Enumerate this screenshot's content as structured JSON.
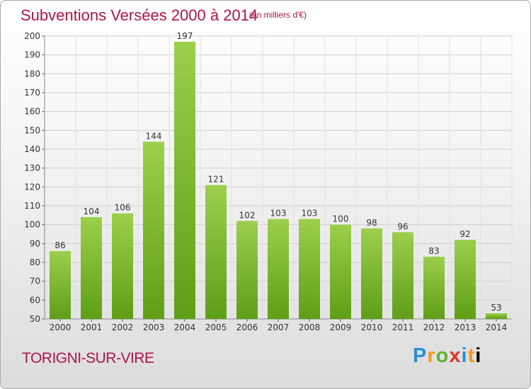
{
  "header": {
    "title": "Subventions Versées 2000 à 2014",
    "subtitle": "(en milliers d'€)"
  },
  "footer": {
    "commune": "TORIGNI-SUR-VIRE",
    "logo_letters": [
      "P",
      "r",
      "o",
      "x",
      "i",
      "t",
      "i"
    ]
  },
  "colors": {
    "title": "#b0134a",
    "bar_top": "#9ccf4b",
    "bar_bottom": "#5f9e17"
  },
  "chart_data": {
    "type": "bar",
    "title": "Subventions Versées 2000 à 2014",
    "subtitle": "(en milliers d'€)",
    "xlabel": "",
    "ylabel": "",
    "categories": [
      "2000",
      "2001",
      "2002",
      "2003",
      "2004",
      "2005",
      "2006",
      "2007",
      "2008",
      "2009",
      "2010",
      "2011",
      "2012",
      "2013",
      "2014"
    ],
    "values": [
      86,
      104,
      106,
      144,
      197,
      121,
      102,
      103,
      103,
      100,
      98,
      96,
      83,
      92,
      53
    ],
    "ylim": [
      50,
      200
    ],
    "yticks": [
      50,
      60,
      70,
      80,
      90,
      100,
      110,
      120,
      130,
      140,
      150,
      160,
      170,
      180,
      190,
      200
    ],
    "grid": true,
    "legend": "none"
  }
}
